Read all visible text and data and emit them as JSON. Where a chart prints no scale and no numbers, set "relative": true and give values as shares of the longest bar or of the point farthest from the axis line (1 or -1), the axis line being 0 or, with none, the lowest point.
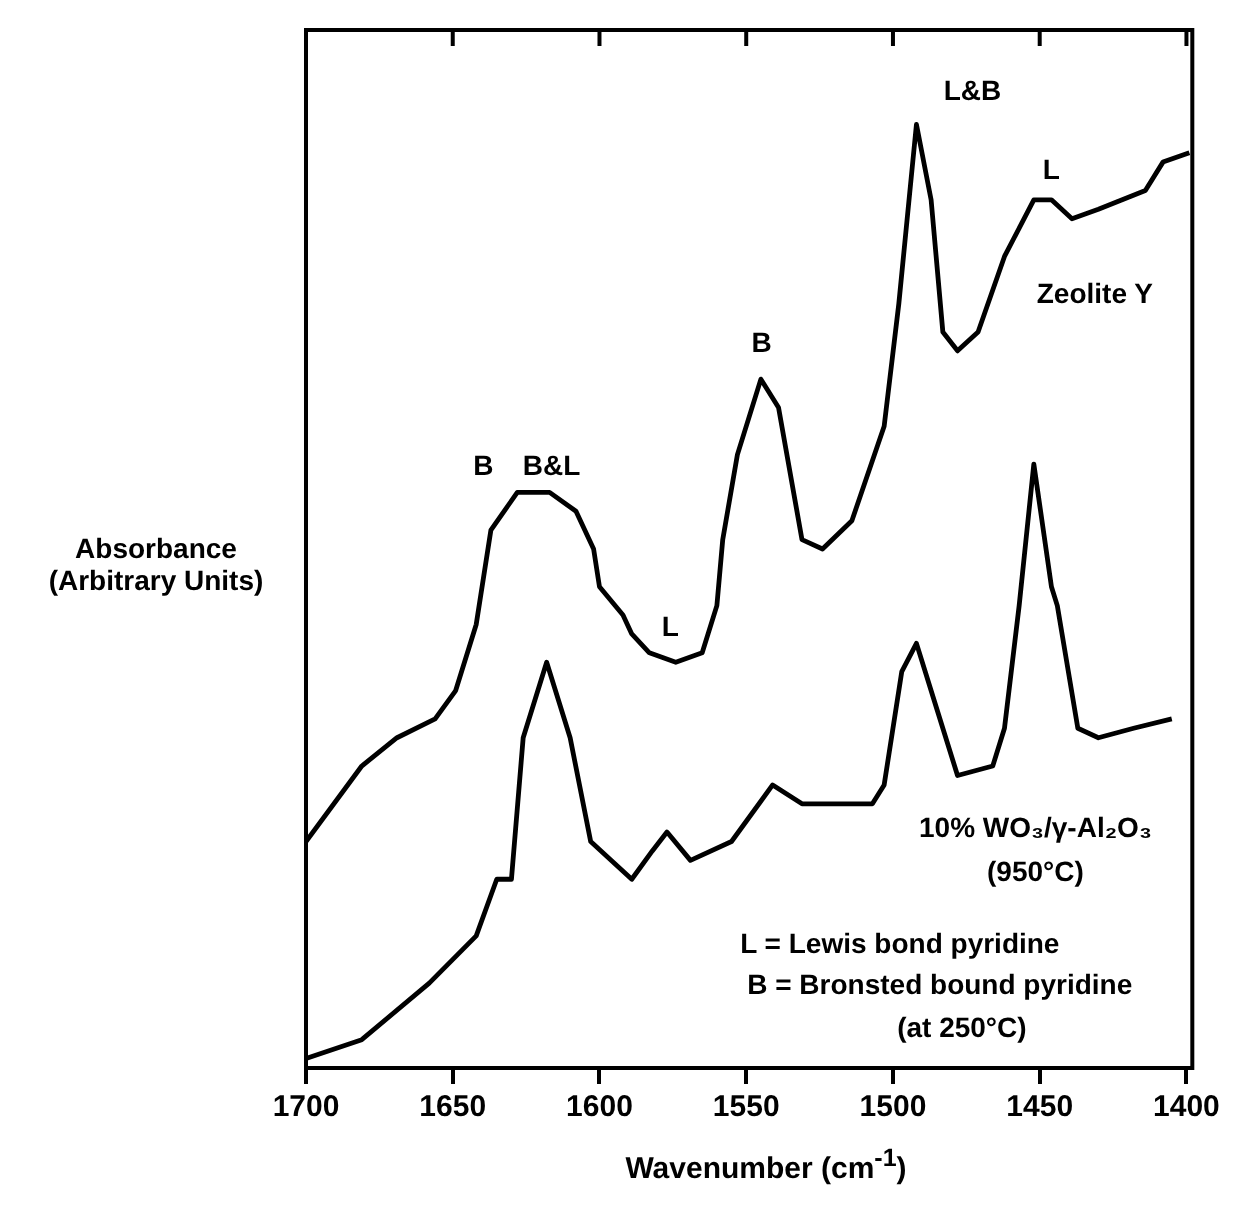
{
  "chart_data": {
    "type": "line",
    "xlabel": "Wavenumber (cm$^{-1}$)",
    "ylabel": "Absorbance (Arbitrary Units)",
    "relative": true,
    "xlim": [
      1700,
      1398
    ],
    "xticks": [
      1700,
      1650,
      1600,
      1550,
      1500,
      1450,
      1400
    ],
    "legend": false,
    "grid": false,
    "marker": "none",
    "line_style": "solid",
    "series": [
      {
        "name": "Zeolite Y",
        "color": "#000000",
        "x": [
          1700,
          1681,
          1669,
          1656,
          1649,
          1642,
          1637,
          1628,
          1624,
          1617,
          1608,
          1602,
          1600,
          1592,
          1589,
          1583,
          1574,
          1565,
          1560,
          1558,
          1553,
          1545,
          1539,
          1531,
          1524,
          1514,
          1503,
          1498,
          1492,
          1487,
          1483,
          1478,
          1471,
          1462,
          1452,
          1446,
          1439,
          1430,
          1414,
          1408,
          1399
        ],
        "values": [
          0.24,
          0.32,
          0.35,
          0.37,
          0.4,
          0.47,
          0.57,
          0.61,
          0.61,
          0.61,
          0.59,
          0.55,
          0.51,
          0.48,
          0.46,
          0.44,
          0.43,
          0.44,
          0.49,
          0.56,
          0.65,
          0.73,
          0.7,
          0.56,
          0.55,
          0.58,
          0.68,
          0.81,
          1,
          0.92,
          0.78,
          0.76,
          0.78,
          0.86,
          0.92,
          0.92,
          0.9,
          0.91,
          0.93,
          0.96,
          0.97
        ]
      },
      {
        "name": "10% WO₃/γ-Al₂O₃\n(950°C)",
        "color": "#000000",
        "x": [
          1700,
          1681,
          1658,
          1642,
          1635,
          1630,
          1626,
          1618,
          1610,
          1603,
          1589,
          1582,
          1577,
          1569,
          1555,
          1541,
          1531,
          1507,
          1503,
          1497,
          1492,
          1485,
          1478,
          1466,
          1462,
          1457,
          1452,
          1446,
          1444,
          1437,
          1430,
          1418,
          1405
        ],
        "values": [
          0.01,
          0.03,
          0.09,
          0.14,
          0.2,
          0.2,
          0.35,
          0.43,
          0.35,
          0.24,
          0.2,
          0.23,
          0.25,
          0.22,
          0.24,
          0.3,
          0.28,
          0.28,
          0.3,
          0.42,
          0.45,
          0.38,
          0.31,
          0.32,
          0.36,
          0.49,
          0.64,
          0.51,
          0.49,
          0.36,
          0.35,
          0.36,
          0.37
        ]
      }
    ],
    "annotations": [
      "B",
      "B&L",
      "L",
      "B",
      "L&B",
      "L",
      "L = Lewis bond pyridine",
      "B = Bronsted bound pyridine",
      "(at 250°C)"
    ]
  }
}
